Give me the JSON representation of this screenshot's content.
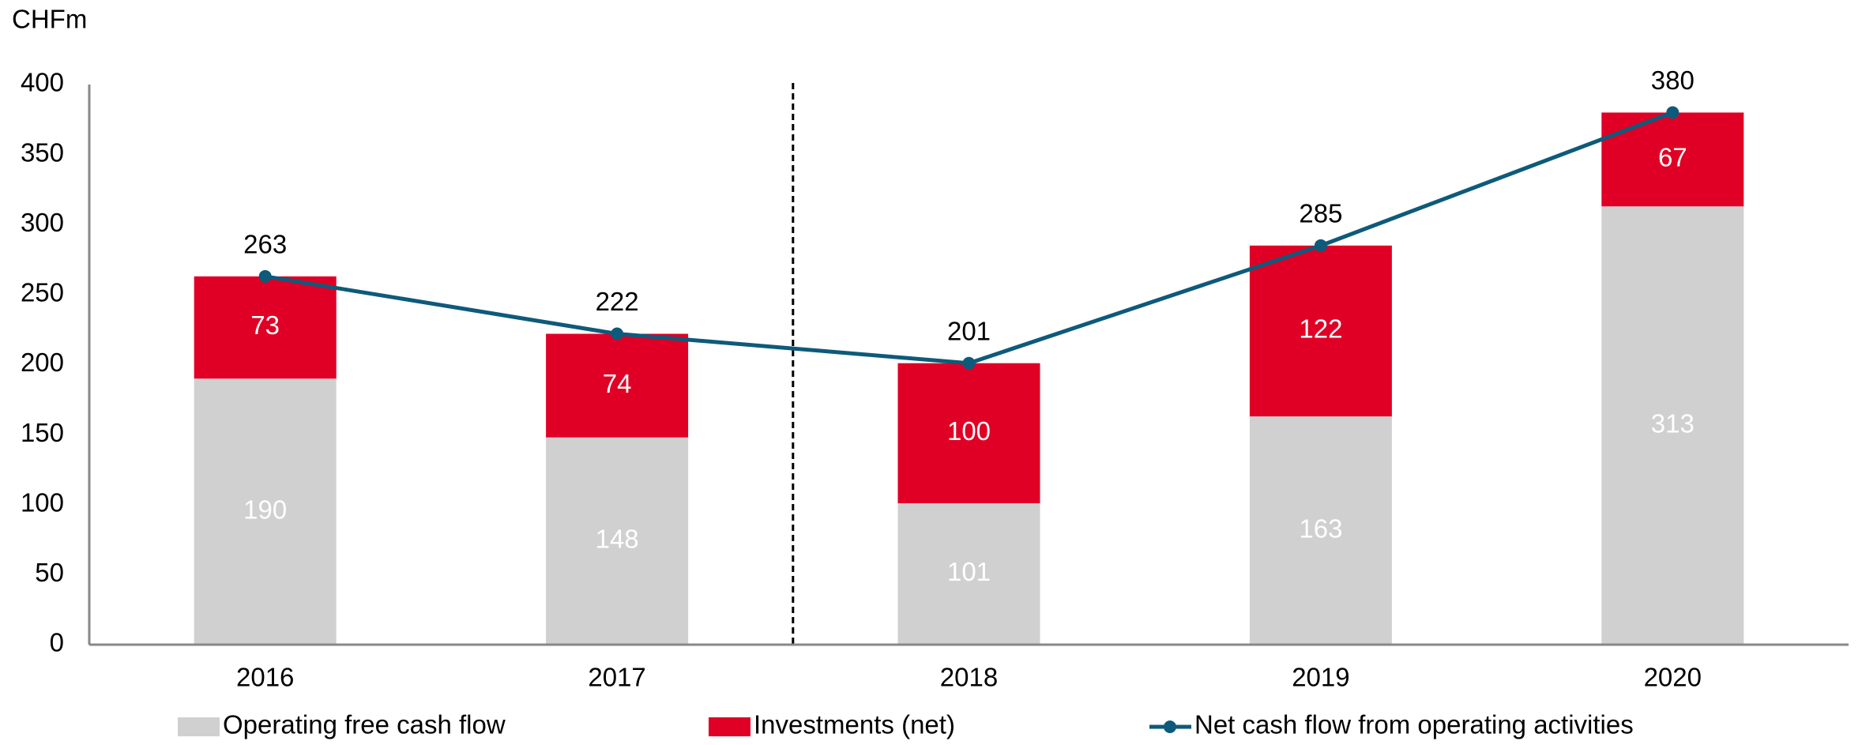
{
  "chart_data": {
    "type": "stacked_bar_line",
    "y_label": "CHFm",
    "categories": [
      "2016",
      "2017",
      "2018",
      "2019",
      "2020"
    ],
    "series": [
      {
        "name": "Operating free cash flow",
        "color": "#d0d0d0",
        "kind": "bar",
        "values": [
          190,
          148,
          101,
          163,
          313
        ]
      },
      {
        "name": "Investments (net)",
        "color": "#e00025",
        "kind": "bar",
        "values": [
          73,
          74,
          100,
          122,
          67
        ]
      },
      {
        "name": "Net cash flow from operating activities",
        "color": "#0e5a7a",
        "kind": "line",
        "values": [
          263,
          222,
          201,
          285,
          380
        ]
      }
    ],
    "ylim": [
      0,
      400
    ],
    "yticks": [
      0,
      50,
      100,
      150,
      200,
      250,
      300,
      350,
      400
    ],
    "grid": false
  }
}
